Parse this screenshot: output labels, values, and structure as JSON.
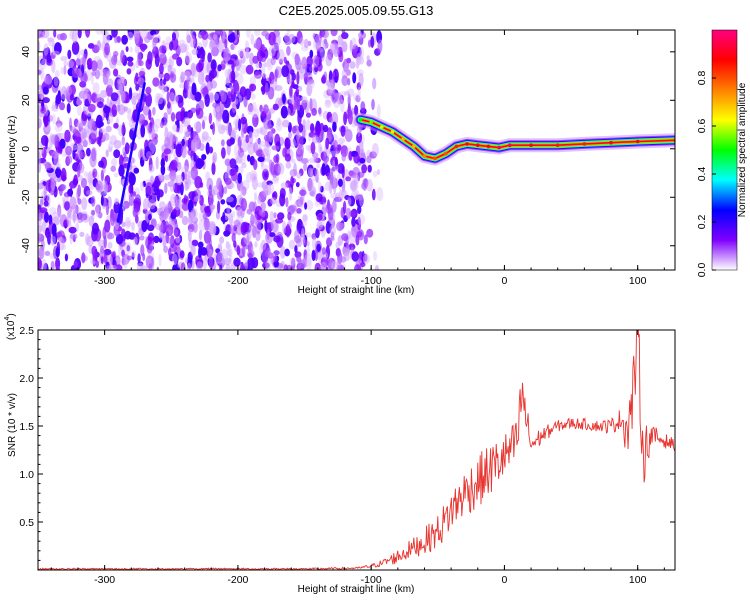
{
  "figure": {
    "title": "C2E5.2025.005.09.55.G13"
  },
  "chart_data": [
    {
      "type": "heatmap",
      "title": "C2E5.2025.005.09.55.G13",
      "xlabel": "Height of straight line (km)",
      "ylabel": "Frequency (Hz)",
      "xlim": [
        -350,
        128
      ],
      "ylim": [
        -50,
        49
      ],
      "xticks": [
        -300,
        -200,
        -100,
        0,
        100
      ],
      "yticks": [
        -40,
        -20,
        0,
        20,
        40
      ],
      "colorbar": {
        "label": "Normalized spectral amplitude",
        "range": [
          0,
          1
        ],
        "ticks": [
          "0.0",
          "0.2",
          "0.4",
          "0.6",
          "0.8"
        ],
        "colormap": [
          "#ffffff",
          "#8000ff",
          "#0000ff",
          "#00ffff",
          "#00ff00",
          "#ffff00",
          "#ff8000",
          "#ff0000",
          "#ff0080"
        ]
      },
      "noise_region_x": [
        -350,
        -105
      ],
      "ridge": {
        "x": [
          -108,
          -100,
          -92,
          -84,
          -76,
          -68,
          -60,
          -52,
          -44,
          -36,
          -28,
          -20,
          -12,
          -4,
          4,
          20,
          40,
          60,
          80,
          100,
          128
        ],
        "y": [
          12,
          11,
          9,
          7,
          4,
          1,
          -3,
          -4,
          -2,
          1,
          2,
          1.5,
          1,
          0.5,
          1.5,
          1.5,
          1.5,
          2,
          2.5,
          3,
          3.5
        ],
        "amplitude": [
          0.5,
          0.55,
          0.6,
          0.65,
          0.7,
          0.7,
          0.75,
          0.8,
          0.8,
          0.85,
          0.9,
          0.9,
          0.9,
          0.95,
          0.95,
          0.9,
          0.85,
          0.85,
          0.9,
          0.9,
          0.85
        ]
      },
      "streak": {
        "x": [
          -290,
          -270
        ],
        "y": [
          -30,
          27
        ]
      }
    },
    {
      "type": "line",
      "title": "",
      "xlabel": "Height of straight line (km)",
      "ylabel": "SNR (10 * v/v)",
      "multiplier_label": "(x10",
      "multiplier_exp": "4",
      "multiplier_close": ")",
      "xlim": [
        -350,
        128
      ],
      "ylim": [
        0,
        2.5
      ],
      "xticks": [
        -300,
        -200,
        -100,
        0,
        100
      ],
      "yticks": [
        "0.5",
        "1.0",
        "1.5",
        "2.0",
        "2.5"
      ],
      "color": "#e8332e",
      "series": [
        {
          "name": "SNR",
          "x": [
            -350,
            -300,
            -250,
            -200,
            -150,
            -110,
            -100,
            -90,
            -80,
            -70,
            -60,
            -50,
            -45,
            -40,
            -30,
            -20,
            -10,
            0,
            5,
            10,
            13,
            20,
            30,
            40,
            50,
            60,
            70,
            80,
            88,
            92,
            96,
            100,
            104,
            110,
            120,
            128
          ],
          "y": [
            0.01,
            0.01,
            0.01,
            0.01,
            0.01,
            0.02,
            0.04,
            0.08,
            0.14,
            0.22,
            0.3,
            0.4,
            0.5,
            0.62,
            0.8,
            0.92,
            1.05,
            1.18,
            1.25,
            1.35,
            1.85,
            1.3,
            1.42,
            1.5,
            1.53,
            1.52,
            1.5,
            1.5,
            1.58,
            1.45,
            1.75,
            2.45,
            1.2,
            1.4,
            1.35,
            1.3
          ],
          "noise_amplitude": [
            0.01,
            0.01,
            0.01,
            0.01,
            0.01,
            0.01,
            0.02,
            0.04,
            0.08,
            0.1,
            0.14,
            0.18,
            0.2,
            0.22,
            0.25,
            0.28,
            0.28,
            0.25,
            0.25,
            0.25,
            0.3,
            0.12,
            0.08,
            0.06,
            0.06,
            0.06,
            0.06,
            0.08,
            0.12,
            0.3,
            0.35,
            0.4,
            0.35,
            0.12,
            0.08,
            0.06
          ]
        }
      ]
    }
  ]
}
